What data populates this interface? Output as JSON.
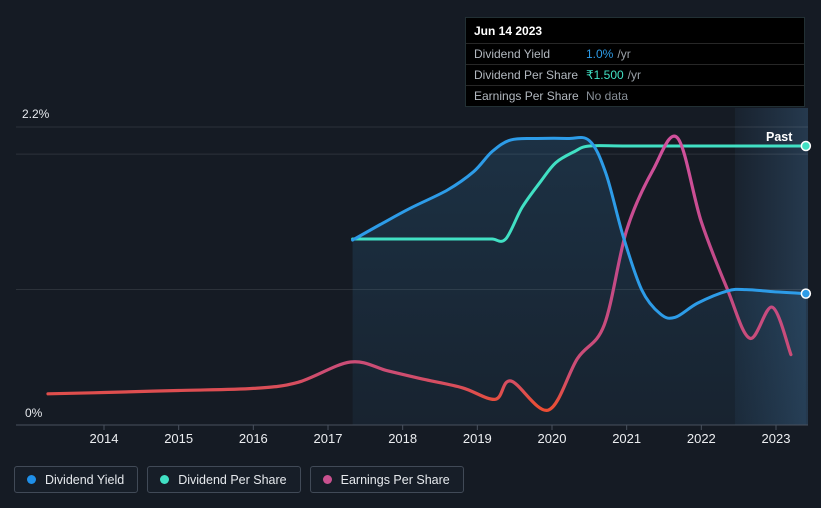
{
  "tooltip": {
    "date": "Jun 14 2023",
    "rows": [
      {
        "label": "Dividend Yield",
        "value": "1.0%",
        "suffix": "/yr",
        "value_color": "#2d9ce8"
      },
      {
        "label": "Dividend Per Share",
        "value": "₹1.500",
        "suffix": "/yr",
        "value_color": "#41e0c4"
      },
      {
        "label": "Earnings Per Share",
        "value": "No data",
        "suffix": "",
        "value_color": "#878e96"
      }
    ]
  },
  "chart_data": {
    "type": "line",
    "x_tick_labels": [
      "2014",
      "2015",
      "2016",
      "2017",
      "2018",
      "2019",
      "2020",
      "2021",
      "2022",
      "2023"
    ],
    "x_axis_range_years": [
      2013.1,
      2023.55
    ],
    "y_axis": {
      "top_label": "2.2%",
      "bottom_label": "0%",
      "unit": "%",
      "range": [
        0,
        2.2
      ],
      "gridlines_pct": [
        2.2,
        2.0,
        1.0,
        0
      ]
    },
    "past_band": {
      "label": "Past",
      "start_year": 2022.45,
      "end_year": 2023.55
    },
    "series": [
      {
        "name": "Dividend Yield",
        "unit": "%",
        "color": "#2d9ce8",
        "scale_note": "left percent axis 0-2.2%",
        "points": [
          [
            2017.33,
            1.365
          ],
          [
            2017.7,
            1.48
          ],
          [
            2018.1,
            1.6
          ],
          [
            2018.6,
            1.735
          ],
          [
            2018.95,
            1.87
          ],
          [
            2019.2,
            2.02
          ],
          [
            2019.45,
            2.105
          ],
          [
            2019.8,
            2.115
          ],
          [
            2020.2,
            2.115
          ],
          [
            2020.5,
            2.1
          ],
          [
            2020.72,
            1.86
          ],
          [
            2020.95,
            1.4
          ],
          [
            2021.2,
            1.0
          ],
          [
            2021.45,
            0.82
          ],
          [
            2021.65,
            0.795
          ],
          [
            2021.95,
            0.9
          ],
          [
            2022.35,
            0.99
          ],
          [
            2022.6,
            1.0
          ],
          [
            2022.95,
            0.985
          ],
          [
            2023.4,
            0.97
          ]
        ]
      },
      {
        "name": "Dividend Per Share",
        "unit": "₹",
        "color": "#41e0c4",
        "scale_note": "rupee axis, ₹0 at baseline, plateau ₹1.500",
        "points": [
          [
            2017.33,
            1.0
          ],
          [
            2018.0,
            1.0
          ],
          [
            2018.5,
            1.0
          ],
          [
            2019.0,
            1.0
          ],
          [
            2019.2,
            1.0
          ],
          [
            2019.38,
            1.0
          ],
          [
            2019.6,
            1.17
          ],
          [
            2019.85,
            1.31
          ],
          [
            2020.05,
            1.41
          ],
          [
            2020.3,
            1.47
          ],
          [
            2020.5,
            1.5
          ],
          [
            2021.0,
            1.5
          ],
          [
            2022.0,
            1.5
          ],
          [
            2023.4,
            1.5
          ]
        ]
      },
      {
        "name": "Earnings Per Share",
        "unit": "unlabeled axis (values in percent-axis equivalents)",
        "color": "#c24a88",
        "low_color": "#f2482a",
        "points": [
          [
            2013.25,
            0.23
          ],
          [
            2014.0,
            0.24
          ],
          [
            2015.0,
            0.255
          ],
          [
            2016.0,
            0.27
          ],
          [
            2016.6,
            0.315
          ],
          [
            2017.3,
            0.465
          ],
          [
            2017.8,
            0.4
          ],
          [
            2018.3,
            0.335
          ],
          [
            2018.8,
            0.275
          ],
          [
            2019.24,
            0.19
          ],
          [
            2019.45,
            0.325
          ],
          [
            2019.95,
            0.11
          ],
          [
            2020.34,
            0.49
          ],
          [
            2020.7,
            0.74
          ],
          [
            2021.0,
            1.44
          ],
          [
            2021.35,
            1.88
          ],
          [
            2021.68,
            2.12
          ],
          [
            2022.0,
            1.5
          ],
          [
            2022.35,
            1.0
          ],
          [
            2022.65,
            0.64
          ],
          [
            2022.95,
            0.87
          ],
          [
            2023.2,
            0.52
          ]
        ]
      }
    ],
    "legend": [
      {
        "label": "Dividend Yield",
        "color": "#1f8fe8"
      },
      {
        "label": "Dividend Per Share",
        "color": "#41e0c4"
      },
      {
        "label": "Earnings Per Share",
        "color": "#c9518f"
      }
    ]
  }
}
